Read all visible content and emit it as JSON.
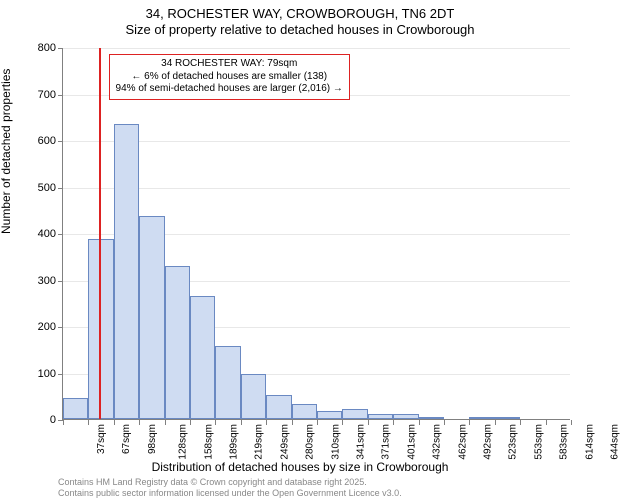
{
  "title": {
    "line1": "34, ROCHESTER WAY, CROWBOROUGH, TN6 2DT",
    "line2": "Size of property relative to detached houses in Crowborough"
  },
  "chart": {
    "type": "histogram",
    "bar_fill": "#cfdcf2",
    "bar_stroke": "#6a89c2",
    "background_color": "#ffffff",
    "grid_color": "#e8e8e8",
    "axis_color": "#808080",
    "marker_color": "#d22",
    "y": {
      "label": "Number of detached properties",
      "min": 0,
      "max": 800,
      "ticks": [
        0,
        100,
        200,
        300,
        400,
        500,
        600,
        700,
        800
      ]
    },
    "x": {
      "label": "Distribution of detached houses by size in Crowborough",
      "ticks": [
        "37sqm",
        "67sqm",
        "98sqm",
        "128sqm",
        "158sqm",
        "189sqm",
        "219sqm",
        "249sqm",
        "280sqm",
        "310sqm",
        "341sqm",
        "371sqm",
        "401sqm",
        "432sqm",
        "462sqm",
        "492sqm",
        "523sqm",
        "553sqm",
        "583sqm",
        "614sqm",
        "644sqm"
      ]
    },
    "bars": [
      46,
      387,
      634,
      437,
      330,
      264,
      158,
      96,
      52,
      33,
      18,
      22,
      11,
      11,
      2,
      0,
      1,
      3,
      0,
      0
    ],
    "marker_bin_index": 1,
    "marker_fraction_in_bin": 0.4,
    "annotation": {
      "line1": "34 ROCHESTER WAY: 79sqm",
      "line2": "← 6% of detached houses are smaller (138)",
      "line3": "94% of semi-detached houses are larger (2,016) →"
    }
  },
  "footer": {
    "line1": "Contains HM Land Registry data © Crown copyright and database right 2025.",
    "line2": "Contains public sector information licensed under the Open Government Licence v3.0."
  }
}
